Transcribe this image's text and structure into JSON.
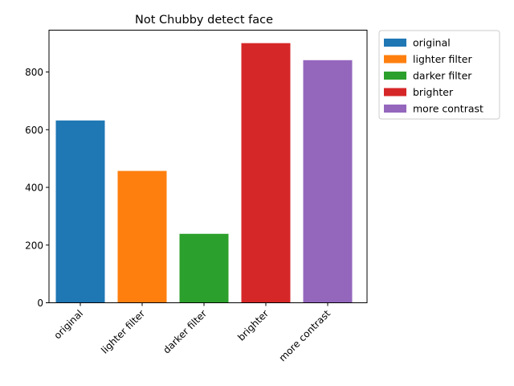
{
  "chart_data": {
    "type": "bar",
    "title": "Not Chubby detect face",
    "xlabel": "",
    "ylabel": "",
    "categories": [
      "original",
      "lighter filter",
      "darker filter",
      "brighter",
      "more contrast"
    ],
    "values": [
      632,
      457,
      239,
      900,
      841
    ],
    "colors": [
      "#1f77b4",
      "#ff7f0e",
      "#2ca02c",
      "#d62728",
      "#9467bd"
    ],
    "ylim": [
      0,
      945
    ],
    "yticks": [
      0,
      200,
      400,
      600,
      800
    ],
    "ytick_labels": [
      "0",
      "200",
      "400",
      "600",
      "800"
    ],
    "legend": {
      "placement": "outside-top-right",
      "entries": [
        "original",
        "lighter filter",
        "darker filter",
        "brighter",
        "more contrast"
      ]
    },
    "grid": false
  }
}
